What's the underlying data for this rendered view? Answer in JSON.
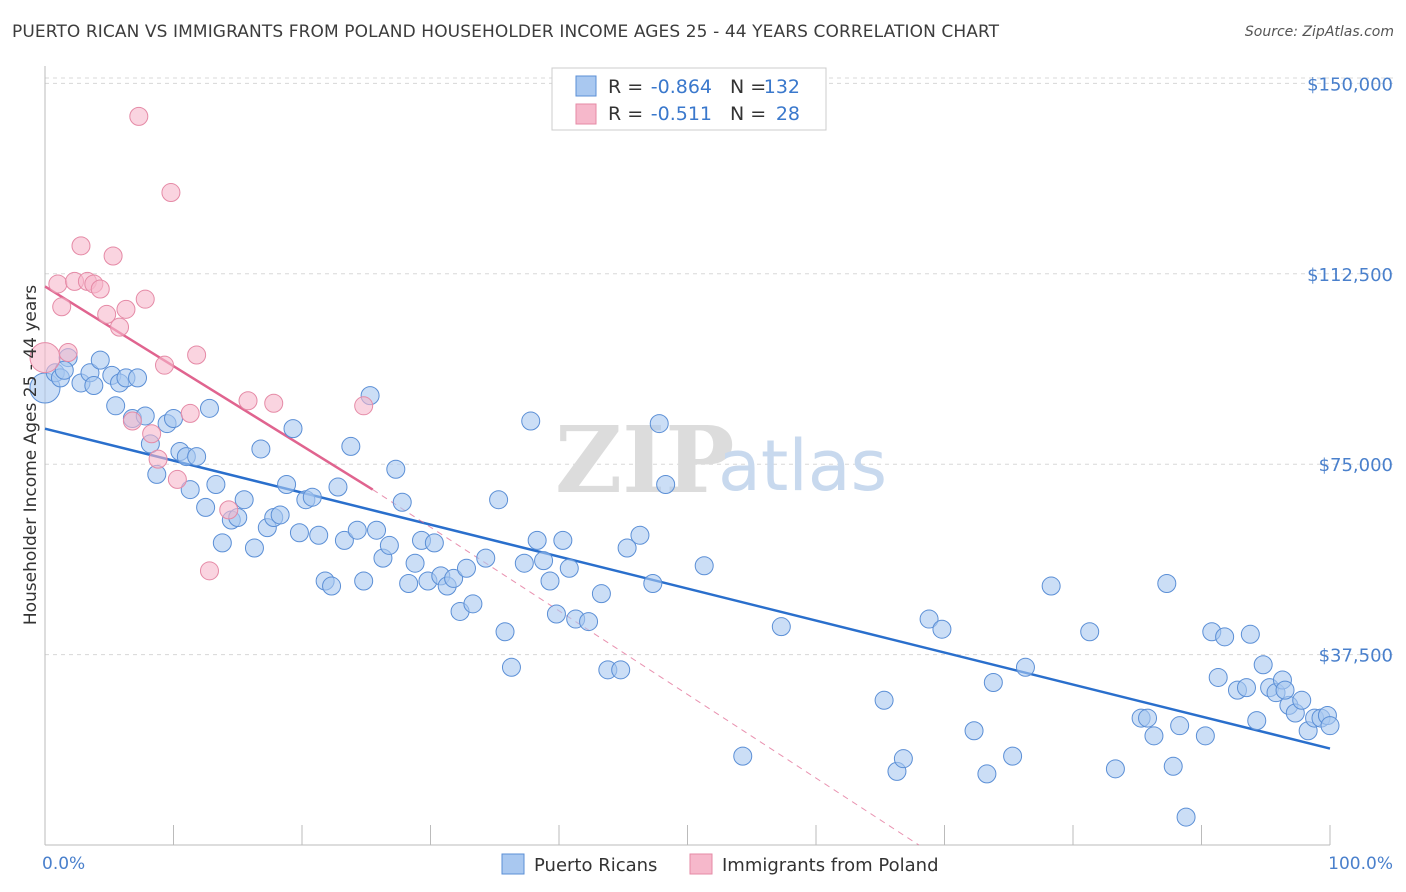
{
  "title": "PUERTO RICAN VS IMMIGRANTS FROM POLAND HOUSEHOLDER INCOME AGES 25 - 44 YEARS CORRELATION CHART",
  "source": "Source: ZipAtlas.com",
  "watermark": {
    "zip": "ZIP",
    "atlas": "atlas"
  },
  "colors": {
    "blue_fill": "#a9c8f0",
    "blue_stroke": "#5b8fd6",
    "blue_line": "#2a6fcc",
    "pink_fill": "#f6b8cb",
    "pink_stroke": "#e58aa6",
    "pink_line": "#e0648f",
    "grid": "#d8d8d8",
    "tick_label": "#4a80cc"
  },
  "legend": {
    "rows": [
      {
        "r_label": "R =",
        "r_value": "-0.864",
        "n_label": "N =",
        "n_value": "132"
      },
      {
        "r_label": "R =",
        "r_value": "-0.511",
        "n_label": "N =",
        "n_value": "28"
      }
    ]
  },
  "bottom_legend": [
    "Puerto Ricans",
    "Immigrants from Poland"
  ],
  "chart_data": {
    "type": "scatter",
    "xlabel": "",
    "ylabel": "Householder Income Ages 25 - 44 years",
    "xlim": [
      0,
      100
    ],
    "ylim": [
      0,
      155000
    ],
    "x_tick_labels": [
      "0.0%",
      "100.0%"
    ],
    "y_ticks": [
      37500,
      75000,
      112500,
      150000
    ],
    "y_tick_labels": [
      "$37,500",
      "$75,000",
      "$112,500",
      "$150,000"
    ],
    "grid": true,
    "legend_position": "top-center",
    "series": [
      {
        "name": "Puerto Ricans",
        "color": "#a9c8f0",
        "trend": {
          "x": [
            0,
            100
          ],
          "y": [
            82000,
            19000
          ]
        },
        "points": [
          [
            0,
            90000
          ],
          [
            0.8,
            93000
          ],
          [
            1.2,
            92000
          ],
          [
            1.8,
            96000
          ],
          [
            1.5,
            93500
          ],
          [
            2.8,
            91000
          ],
          [
            3.5,
            93000
          ],
          [
            3.8,
            90500
          ],
          [
            4.3,
            95500
          ],
          [
            5.2,
            92500
          ],
          [
            5.5,
            86500
          ],
          [
            5.8,
            91000
          ],
          [
            6.3,
            92000
          ],
          [
            6.8,
            84000
          ],
          [
            7.2,
            92000
          ],
          [
            7.8,
            84500
          ],
          [
            8.2,
            79000
          ],
          [
            8.7,
            73000
          ],
          [
            9.5,
            83000
          ],
          [
            10,
            84000
          ],
          [
            10.5,
            77500
          ],
          [
            11,
            76500
          ],
          [
            11.3,
            70000
          ],
          [
            11.8,
            76500
          ],
          [
            12.5,
            66500
          ],
          [
            12.8,
            86000
          ],
          [
            13.3,
            71000
          ],
          [
            13.8,
            59500
          ],
          [
            14.5,
            64000
          ],
          [
            15,
            64500
          ],
          [
            15.5,
            68000
          ],
          [
            16.3,
            58500
          ],
          [
            16.8,
            78000
          ],
          [
            17.3,
            62500
          ],
          [
            17.8,
            64500
          ],
          [
            18.3,
            65000
          ],
          [
            18.8,
            71000
          ],
          [
            19.3,
            82000
          ],
          [
            19.8,
            61500
          ],
          [
            20.3,
            68000
          ],
          [
            20.8,
            68500
          ],
          [
            21.3,
            61000
          ],
          [
            21.8,
            52000
          ],
          [
            22.3,
            51000
          ],
          [
            22.8,
            70500
          ],
          [
            23.3,
            60000
          ],
          [
            23.8,
            78500
          ],
          [
            24.3,
            62000
          ],
          [
            24.8,
            52000
          ],
          [
            25.3,
            88500
          ],
          [
            25.8,
            62000
          ],
          [
            26.3,
            56500
          ],
          [
            26.8,
            59000
          ],
          [
            27.3,
            74000
          ],
          [
            27.8,
            67500
          ],
          [
            28.3,
            51500
          ],
          [
            28.8,
            55500
          ],
          [
            29.3,
            60000
          ],
          [
            29.8,
            52000
          ],
          [
            30.3,
            59500
          ],
          [
            30.8,
            53000
          ],
          [
            31.3,
            51000
          ],
          [
            31.8,
            52500
          ],
          [
            32.3,
            46000
          ],
          [
            32.8,
            54500
          ],
          [
            33.3,
            47500
          ],
          [
            34.3,
            56500
          ],
          [
            35.3,
            68000
          ],
          [
            35.8,
            42000
          ],
          [
            36.3,
            35000
          ],
          [
            37.3,
            55500
          ],
          [
            37.8,
            83500
          ],
          [
            38.3,
            60000
          ],
          [
            38.8,
            56000
          ],
          [
            39.3,
            52000
          ],
          [
            39.8,
            45500
          ],
          [
            40.3,
            60000
          ],
          [
            40.8,
            54500
          ],
          [
            41.3,
            44500
          ],
          [
            42.3,
            44000
          ],
          [
            43.3,
            49500
          ],
          [
            43.8,
            34500
          ],
          [
            44.8,
            34500
          ],
          [
            45.3,
            58500
          ],
          [
            46.3,
            61000
          ],
          [
            47.3,
            51500
          ],
          [
            47.8,
            83000
          ],
          [
            48.3,
            71000
          ],
          [
            51.3,
            55000
          ],
          [
            54.3,
            17500
          ],
          [
            57.3,
            43000
          ],
          [
            65.3,
            28500
          ],
          [
            66.3,
            14500
          ],
          [
            66.8,
            17000
          ],
          [
            68.8,
            44500
          ],
          [
            69.8,
            42500
          ],
          [
            72.3,
            22500
          ],
          [
            73.3,
            14000
          ],
          [
            73.8,
            32000
          ],
          [
            75.3,
            17500
          ],
          [
            76.3,
            35000
          ],
          [
            78.3,
            51000
          ],
          [
            81.3,
            42000
          ],
          [
            83.3,
            15000
          ],
          [
            85.3,
            25000
          ],
          [
            85.8,
            25000
          ],
          [
            86.3,
            21500
          ],
          [
            87.3,
            51500
          ],
          [
            87.8,
            15500
          ],
          [
            88.3,
            23500
          ],
          [
            88.8,
            5500
          ],
          [
            90.3,
            21500
          ],
          [
            90.8,
            42000
          ],
          [
            91.3,
            33000
          ],
          [
            91.8,
            41000
          ],
          [
            92.8,
            30500
          ],
          [
            93.8,
            41500
          ],
          [
            94.3,
            24500
          ],
          [
            94.8,
            35500
          ],
          [
            95.3,
            31000
          ],
          [
            95.8,
            30000
          ],
          [
            96.3,
            32500
          ],
          [
            96.8,
            27500
          ],
          [
            97.3,
            26000
          ],
          [
            97.8,
            28500
          ],
          [
            98.3,
            22500
          ],
          [
            98.8,
            25000
          ],
          [
            99.3,
            25000
          ],
          [
            99.8,
            25500
          ],
          [
            100,
            23500
          ],
          [
            93.5,
            31000
          ],
          [
            96.5,
            30500
          ]
        ]
      },
      {
        "name": "Immigrants from Poland",
        "color": "#f6b8cb",
        "trend": {
          "x": [
            0,
            25.5
          ],
          "y": [
            110000,
            70000
          ],
          "dashed_extension_to": [
            68,
            0
          ]
        },
        "points": [
          [
            0,
            96000
          ],
          [
            1,
            110500
          ],
          [
            1.3,
            106000
          ],
          [
            1.8,
            97000
          ],
          [
            2.3,
            111000
          ],
          [
            2.8,
            118000
          ],
          [
            3.3,
            111000
          ],
          [
            3.8,
            110500
          ],
          [
            4.3,
            109500
          ],
          [
            5.3,
            116000
          ],
          [
            4.8,
            104500
          ],
          [
            5.8,
            102000
          ],
          [
            6.3,
            105500
          ],
          [
            6.8,
            83500
          ],
          [
            7.3,
            143500
          ],
          [
            7.8,
            107500
          ],
          [
            8.3,
            81000
          ],
          [
            8.8,
            76000
          ],
          [
            9.3,
            94500
          ],
          [
            9.8,
            128500
          ],
          [
            10.3,
            72000
          ],
          [
            11.3,
            85000
          ],
          [
            11.8,
            96500
          ],
          [
            12.8,
            54000
          ],
          [
            14.3,
            66000
          ],
          [
            15.8,
            87500
          ],
          [
            17.8,
            87000
          ],
          [
            24.8,
            86500
          ]
        ]
      }
    ]
  }
}
